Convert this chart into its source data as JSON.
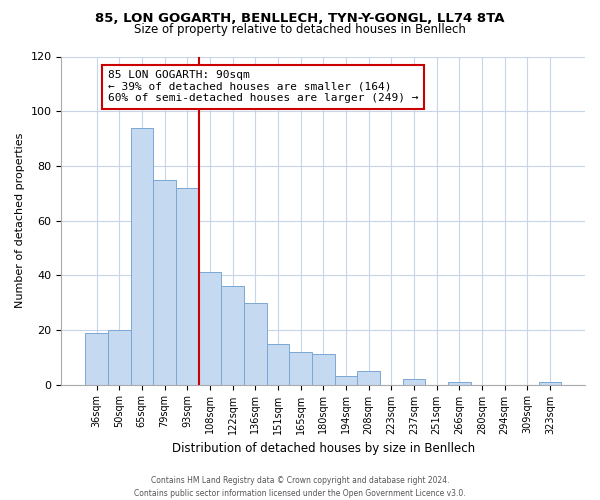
{
  "title1": "85, LON GOGARTH, BENLLECH, TYN-Y-GONGL, LL74 8TA",
  "title2": "Size of property relative to detached houses in Benllech",
  "xlabel": "Distribution of detached houses by size in Benllech",
  "ylabel": "Number of detached properties",
  "bar_labels": [
    "36sqm",
    "50sqm",
    "65sqm",
    "79sqm",
    "93sqm",
    "108sqm",
    "122sqm",
    "136sqm",
    "151sqm",
    "165sqm",
    "180sqm",
    "194sqm",
    "208sqm",
    "223sqm",
    "237sqm",
    "251sqm",
    "266sqm",
    "280sqm",
    "294sqm",
    "309sqm",
    "323sqm"
  ],
  "bar_values": [
    19,
    20,
    94,
    75,
    72,
    41,
    36,
    30,
    15,
    12,
    11,
    3,
    5,
    0,
    2,
    0,
    1,
    0,
    0,
    0,
    1
  ],
  "bar_color": "#c5d9f1",
  "bar_edge_color": "#7ba7d4",
  "vline_color": "#cc0000",
  "vline_x_index": 4,
  "annotation_text": "85 LON GOGARTH: 90sqm\n← 39% of detached houses are smaller (164)\n60% of semi-detached houses are larger (249) →",
  "annotation_box_color": "#ffffff",
  "annotation_box_edge": "#cc0000",
  "ylim": [
    0,
    120
  ],
  "yticks": [
    0,
    20,
    40,
    60,
    80,
    100,
    120
  ],
  "footer1": "Contains HM Land Registry data © Crown copyright and database right 2024.",
  "footer2": "Contains public sector information licensed under the Open Government Licence v3.0.",
  "bg_color": "#ffffff",
  "grid_color": "#c8d4e8"
}
